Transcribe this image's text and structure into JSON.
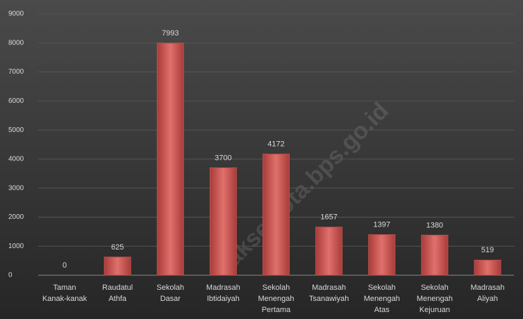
{
  "chart_data": {
    "type": "bar",
    "categories": [
      "Taman Kanak-kanak",
      "Raudatul Athfa",
      "Sekolah Dasar",
      "Madrasah Ibtidaiyah",
      "Sekolah Menengah Pertama",
      "Madrasah Tsanawiyah",
      "Sekolah Menengah Atas",
      "Sekolah Menengah Kejuruan",
      "Madrasah Aliyah"
    ],
    "values": [
      0,
      625,
      7993,
      3700,
      4172,
      1657,
      1397,
      1380,
      519
    ],
    "color": "#c0504d",
    "ylim": [
      0,
      9000
    ],
    "yticks": [
      0,
      1000,
      2000,
      3000,
      4000,
      5000,
      6000,
      7000,
      8000,
      9000
    ],
    "grid": true,
    "watermark": "jakselkota.bps.go.id"
  }
}
